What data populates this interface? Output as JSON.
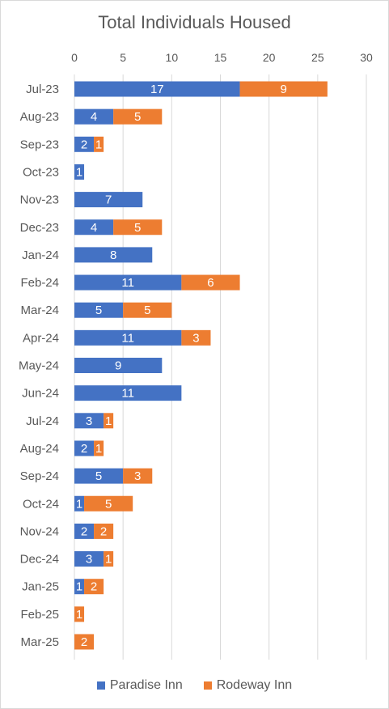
{
  "chart_data": {
    "type": "bar",
    "orientation": "horizontal",
    "stacked": true,
    "title": "Total Individuals Housed",
    "xlim": [
      0,
      30
    ],
    "x_ticks": [
      0,
      5,
      10,
      15,
      20,
      25,
      30
    ],
    "grid": true,
    "legend_position": "bottom",
    "categories": [
      "Jul-23",
      "Aug-23",
      "Sep-23",
      "Oct-23",
      "Nov-23",
      "Dec-23",
      "Jan-24",
      "Feb-24",
      "Mar-24",
      "Apr-24",
      "May-24",
      "Jun-24",
      "Jul-24",
      "Aug-24",
      "Sep-24",
      "Oct-24",
      "Nov-24",
      "Dec-24",
      "Jan-25",
      "Feb-25",
      "Mar-25"
    ],
    "series": [
      {
        "name": "Paradise Inn",
        "color": "#4472c4",
        "values": [
          17,
          4,
          2,
          1,
          7,
          4,
          8,
          11,
          5,
          11,
          9,
          11,
          3,
          2,
          5,
          1,
          2,
          3,
          1,
          null,
          null
        ]
      },
      {
        "name": "Rodeway Inn",
        "color": "#ed7d31",
        "values": [
          9,
          5,
          1,
          null,
          null,
          5,
          null,
          6,
          5,
          3,
          null,
          null,
          1,
          1,
          3,
          5,
          2,
          1,
          2,
          1,
          2
        ]
      }
    ]
  }
}
